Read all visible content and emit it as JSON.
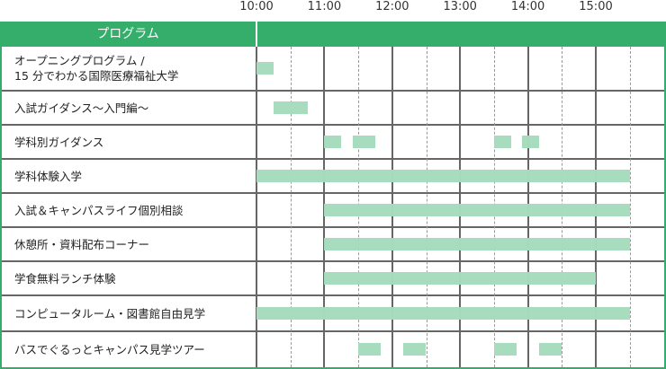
{
  "chart_data": {
    "type": "gantt",
    "header": "プログラム",
    "x_ticks": [
      "10:00",
      "11:00",
      "12:00",
      "13:00",
      "14:00",
      "15:00"
    ],
    "x_range": [
      "10:00",
      "15:50"
    ],
    "grid": "hourly solid, half-hourly dashed",
    "colors": {
      "header": "#35ad6b",
      "bar": "#a5dbbd",
      "grid": "#666666"
    },
    "rows": [
      {
        "label": "オープニングプログラム /\n15 分でわかる国際医療福祉大学",
        "sessions": [
          [
            "10:00",
            "10:15"
          ]
        ]
      },
      {
        "label": "入試ガイダンス〜入門編〜",
        "sessions": [
          [
            "10:15",
            "10:45"
          ]
        ]
      },
      {
        "label": "学科別ガイダンス",
        "sessions": [
          [
            "11:00",
            "11:15"
          ],
          [
            "11:25",
            "11:45"
          ],
          [
            "13:30",
            "13:45"
          ],
          [
            "13:55",
            "14:10"
          ]
        ]
      },
      {
        "label": "学科体験入学",
        "sessions": [
          [
            "10:00",
            "15:30"
          ]
        ]
      },
      {
        "label": "入試＆キャンパスライフ個別相談",
        "sessions": [
          [
            "11:00",
            "15:30"
          ]
        ]
      },
      {
        "label": "休憩所・資料配布コーナー",
        "sessions": [
          [
            "11:00",
            "15:30"
          ]
        ]
      },
      {
        "label": "学食無料ランチ体験",
        "sessions": [
          [
            "11:00",
            "15:00"
          ]
        ]
      },
      {
        "label": "コンピュータルーム・図書館自由見学",
        "sessions": [
          [
            "10:00",
            "15:30"
          ]
        ]
      },
      {
        "label": "バスでぐるっとキャンパス見学ツアー",
        "sessions": [
          [
            "11:30",
            "11:50"
          ],
          [
            "12:10",
            "12:30"
          ],
          [
            "13:30",
            "13:50"
          ],
          [
            "14:10",
            "14:30"
          ]
        ]
      }
    ]
  }
}
